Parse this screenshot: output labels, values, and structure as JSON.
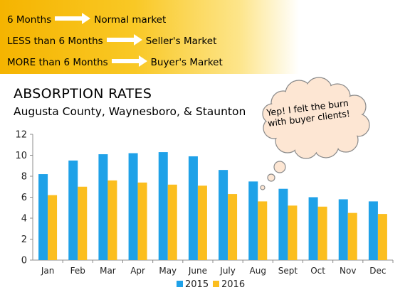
{
  "rules": [
    {
      "condition": "6 Months",
      "result": "Normal market"
    },
    {
      "condition": "LESS than 6 Months",
      "result": "Seller's Market"
    },
    {
      "condition": "MORE than 6 Months",
      "result": "Buyer's Market"
    }
  ],
  "colors": {
    "banner": "#f5b400",
    "series_2015": "#1fa1e8",
    "series_2016": "#fbbe1f",
    "bubble_fill": "#fde6d3"
  },
  "callout": "Yep! I felt the burn with buyer clients!",
  "chart_data": {
    "type": "bar",
    "title": "ABSORPTION RATES",
    "subtitle": "Augusta County, Waynesboro, & Staunton",
    "categories": [
      "Jan",
      "Feb",
      "Mar",
      "Apr",
      "May",
      "June",
      "July",
      "Aug",
      "Sept",
      "Oct",
      "Nov",
      "Dec"
    ],
    "series": [
      {
        "name": "2015",
        "values": [
          8.2,
          9.5,
          10.1,
          10.2,
          10.3,
          9.9,
          8.6,
          7.5,
          6.8,
          6.0,
          5.8,
          5.6
        ]
      },
      {
        "name": "2016",
        "values": [
          6.2,
          7.0,
          7.6,
          7.4,
          7.2,
          7.1,
          6.3,
          5.6,
          5.2,
          5.1,
          4.5,
          4.4
        ]
      }
    ],
    "ylim": [
      0,
      12
    ],
    "yticks": [
      0,
      2,
      4,
      6,
      8,
      10,
      12
    ],
    "grid": false,
    "legend_position": "bottom"
  }
}
